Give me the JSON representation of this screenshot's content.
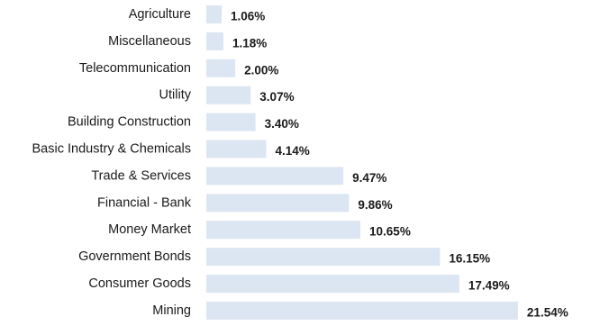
{
  "chart_data": {
    "type": "bar",
    "orientation": "horizontal",
    "categories": [
      "Agriculture",
      "Miscellaneous",
      "Telecommunication",
      "Utility",
      "Building Construction",
      "Basic Industry & Chemicals",
      "Trade & Services",
      "Financial - Bank",
      "Money Market",
      "Government Bonds",
      "Consumer Goods",
      "Mining"
    ],
    "values": [
      1.06,
      1.18,
      2.0,
      3.07,
      3.4,
      4.14,
      9.47,
      9.86,
      10.65,
      16.15,
      17.49,
      21.54
    ],
    "data_labels": [
      "1.06%",
      "1.18%",
      "2.00%",
      "3.07%",
      "3.40%",
      "4.14%",
      "9.47%",
      "9.86%",
      "10.65%",
      "16.15%",
      "17.49%",
      "21.54%"
    ],
    "title": "",
    "xlabel": "",
    "ylabel": "",
    "xlim": [
      0,
      22
    ],
    "grid": false,
    "legend": "none",
    "colors": {
      "bar": "#dce6f2",
      "text": "#1a1a1a"
    }
  }
}
